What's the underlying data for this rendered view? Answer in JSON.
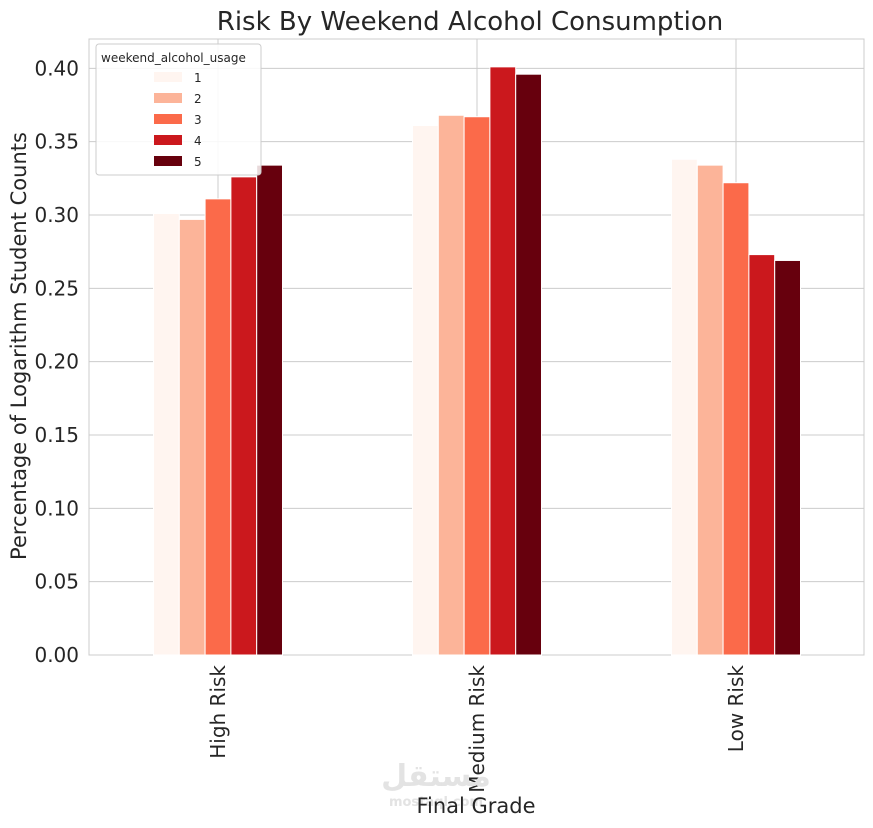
{
  "chart_data": {
    "type": "bar",
    "title": "Risk By Weekend Alcohol Consumption",
    "xlabel": "Final Grade",
    "ylabel": "Percentage of Logarithm Student Counts",
    "categories": [
      "High Risk",
      "Medium Risk",
      "Low Risk"
    ],
    "ylim": [
      0,
      0.42
    ],
    "yticks": [
      0.0,
      0.05,
      0.1,
      0.15,
      0.2,
      0.25,
      0.3,
      0.35,
      0.4
    ],
    "ytick_labels": [
      "0.00",
      "0.05",
      "0.10",
      "0.15",
      "0.20",
      "0.25",
      "0.30",
      "0.35",
      "0.40"
    ],
    "grid": true,
    "legend": {
      "title": "weekend_alcohol_usage",
      "placement": "top-left"
    },
    "series": [
      {
        "name": "1",
        "color": "#fff5f0",
        "values": [
          0.301,
          0.361,
          0.338
        ]
      },
      {
        "name": "2",
        "color": "#fcb499",
        "values": [
          0.297,
          0.368,
          0.334
        ]
      },
      {
        "name": "3",
        "color": "#fb6a4a",
        "values": [
          0.311,
          0.367,
          0.322
        ]
      },
      {
        "name": "4",
        "color": "#cb181d",
        "values": [
          0.326,
          0.401,
          0.273
        ]
      },
      {
        "name": "5",
        "color": "#67000d",
        "values": [
          0.334,
          0.396,
          0.269
        ]
      }
    ]
  },
  "watermark": {
    "text": "مستقل",
    "sub": "mostaql.com"
  }
}
